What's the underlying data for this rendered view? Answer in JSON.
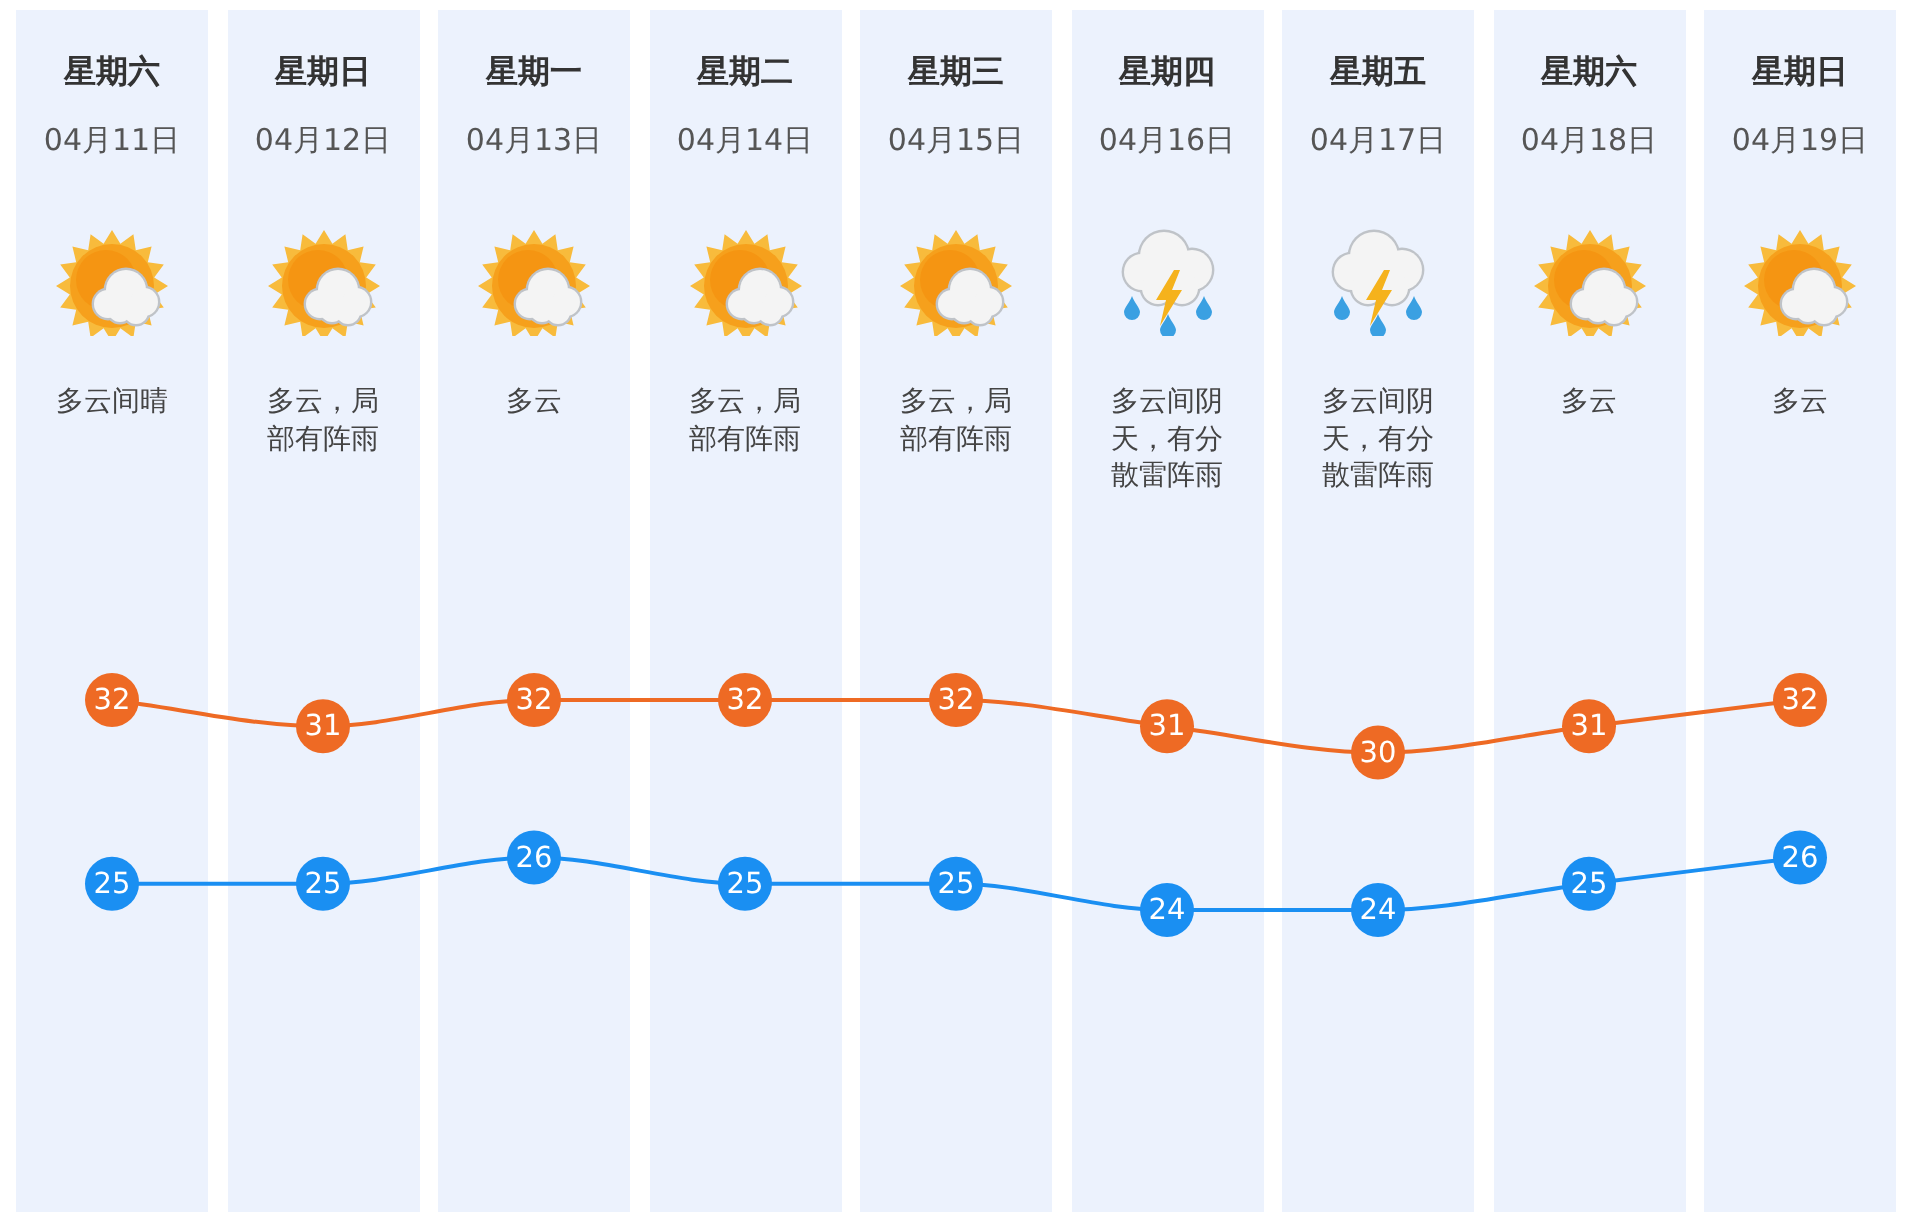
{
  "chart_data": {
    "type": "line",
    "categories": [
      "星期六\n04月11日",
      "星期日\n04月12日",
      "星期一\n04月13日",
      "星期二\n04月14日",
      "星期三\n04月15日",
      "星期四\n04月16日",
      "星期五\n04月17日",
      "星期六\n04月18日",
      "星期日\n04月19日"
    ],
    "series": [
      {
        "color": "#ee6a24",
        "values": [
          32,
          31,
          32,
          32,
          32,
          31,
          30,
          31,
          32
        ]
      },
      {
        "color": "#1a8ff2",
        "values": [
          25,
          25,
          26,
          25,
          25,
          24,
          24,
          25,
          26
        ]
      }
    ],
    "tick_labels": "x",
    "marker": "circle",
    "data_labels": true,
    "annotations": [
      "多云间晴",
      "多云，局部有阵雨",
      "多云",
      "多云，局部有阵雨",
      "多云，局部有阵雨",
      "多云间阴天，有分散雷阵雨",
      "多云间阴天，有分散雷阵雨",
      "多云",
      "多云"
    ]
  }
}
